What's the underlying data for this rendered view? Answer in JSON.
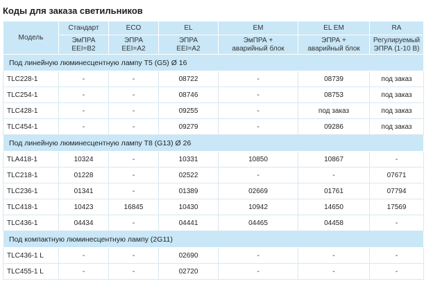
{
  "title": "Коды для заказа светильников",
  "header": {
    "model_label": "Модель",
    "columns": [
      {
        "name": "Стандарт",
        "desc_line1": "ЭмПРА",
        "desc_line2": "EEI=B2"
      },
      {
        "name": "ECO",
        "desc_line1": "ЭПРА",
        "desc_line2": "EEI=A2"
      },
      {
        "name": "EL",
        "desc_line1": "ЭПРА",
        "desc_line2": "EEI=A2"
      },
      {
        "name": "EM",
        "desc_line1": "ЭмПРА +",
        "desc_line2": "аварийный блок"
      },
      {
        "name": "EL EM",
        "desc_line1": "ЭПРА +",
        "desc_line2": "аварийный блок"
      },
      {
        "name": "RA",
        "desc_line1": "Регулируемый",
        "desc_line2": "ЭПРА  (1-10 В)"
      }
    ]
  },
  "sections": [
    {
      "title": "Под линейную люминесцентную лампу T5 (G5) Ø 16",
      "rows": [
        {
          "model": "TLC228-1",
          "cells": [
            "-",
            "-",
            "08722",
            "-",
            "08739",
            "под заказ"
          ]
        },
        {
          "model": "TLC254-1",
          "cells": [
            "-",
            "-",
            "08746",
            "-",
            "08753",
            "под заказ"
          ]
        },
        {
          "model": "TLC428-1",
          "cells": [
            "-",
            "-",
            "09255",
            "-",
            "под заказ",
            "под заказ"
          ]
        },
        {
          "model": "TLC454-1",
          "cells": [
            "-",
            "-",
            "09279",
            "-",
            "09286",
            "под заказ"
          ]
        }
      ]
    },
    {
      "title": "Под линейную люминесцентную лампу T8 (G13)  Ø 26",
      "rows": [
        {
          "model": "TLA418-1",
          "cells": [
            "10324",
            "-",
            "10331",
            "10850",
            "10867",
            "-"
          ]
        },
        {
          "model": "TLC218-1",
          "cells": [
            "01228",
            "-",
            "02522",
            "-",
            "-",
            "07671"
          ]
        },
        {
          "model": "TLC236-1",
          "cells": [
            "01341",
            "-",
            "01389",
            "02669",
            "01761",
            "07794"
          ]
        },
        {
          "model": "TLC418-1",
          "cells": [
            "10423",
            "16845",
            "10430",
            "10942",
            "14650",
            "17569"
          ]
        },
        {
          "model": "TLC436-1",
          "cells": [
            "04434",
            "-",
            "04441",
            "04465",
            "04458",
            "-"
          ]
        }
      ]
    },
    {
      "title": "Под компактную люминесцентную лампу  (2G11)",
      "rows": [
        {
          "model": "TLC436-1 L",
          "cells": [
            "-",
            "-",
            "02690",
            "-",
            "-",
            "-"
          ]
        },
        {
          "model": "TLC455-1 L",
          "cells": [
            "-",
            "-",
            "02720",
            "-",
            "-",
            "-"
          ]
        }
      ]
    }
  ]
}
